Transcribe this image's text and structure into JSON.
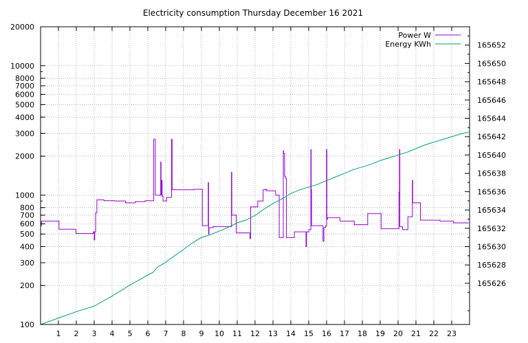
{
  "chart_data": {
    "type": "line",
    "title": "Electricity consumption Thursday December 16 2021",
    "xlabel": "",
    "ylabel": "",
    "y2label": "",
    "x_range": [
      0,
      24
    ],
    "x_ticks": [
      "1",
      "2",
      "3",
      "4",
      "5",
      "6",
      "7",
      "8",
      "9",
      "10",
      "11",
      "12",
      "13",
      "14",
      "15",
      "16",
      "17",
      "18",
      "19",
      "20",
      "21",
      "22",
      "23"
    ],
    "y_scale": "log",
    "y_range": [
      100,
      20000
    ],
    "y_ticks": [
      "100",
      "200",
      "300",
      "400",
      "500",
      "600",
      "700",
      "800",
      "1000",
      "2000",
      "3000",
      "4000",
      "5000",
      "6000",
      "7000",
      "8000",
      "10000",
      "20000"
    ],
    "y2_range": [
      165621.5,
      165654
    ],
    "y2_ticks": [
      "165626",
      "165628",
      "165630",
      "165632",
      "165634",
      "165636",
      "165638",
      "165640",
      "165642",
      "165644",
      "165646",
      "165648",
      "165650",
      "165652"
    ],
    "grid": true,
    "legend_position": "top-right",
    "series": [
      {
        "name": "Power W",
        "axis": "left",
        "color": "#9400d3",
        "step": true,
        "points": [
          [
            0,
            580
          ],
          [
            0.05,
            630
          ],
          [
            1,
            630
          ],
          [
            1.03,
            545
          ],
          [
            1.95,
            545
          ],
          [
            1.98,
            505
          ],
          [
            2.9,
            505
          ],
          [
            2.95,
            520
          ],
          [
            3.0,
            450
          ],
          [
            3.03,
            520
          ],
          [
            3.08,
            730
          ],
          [
            3.15,
            920
          ],
          [
            3.5,
            920
          ],
          [
            3.55,
            905
          ],
          [
            4.1,
            905
          ],
          [
            4.15,
            900
          ],
          [
            4.7,
            900
          ],
          [
            4.75,
            870
          ],
          [
            5.25,
            870
          ],
          [
            5.3,
            890
          ],
          [
            5.8,
            890
          ],
          [
            5.85,
            905
          ],
          [
            6.3,
            905
          ],
          [
            6.33,
            2700
          ],
          [
            6.4,
            2700
          ],
          [
            6.42,
            1000
          ],
          [
            6.7,
            1000
          ],
          [
            6.72,
            1800
          ],
          [
            6.74,
            1000
          ],
          [
            6.78,
            1300
          ],
          [
            6.8,
            980
          ],
          [
            6.85,
            900
          ],
          [
            7.0,
            900
          ],
          [
            7.05,
            960
          ],
          [
            7.3,
            960
          ],
          [
            7.33,
            2700
          ],
          [
            7.36,
            1100
          ],
          [
            8.55,
            1100
          ],
          [
            8.6,
            1110
          ],
          [
            9.0,
            1110
          ],
          [
            9.05,
            580
          ],
          [
            9.35,
            580
          ],
          [
            9.38,
            1250
          ],
          [
            9.4,
            500
          ],
          [
            9.42,
            560
          ],
          [
            9.6,
            560
          ],
          [
            9.65,
            570
          ],
          [
            10.65,
            570
          ],
          [
            10.68,
            1500
          ],
          [
            10.7,
            700
          ],
          [
            10.9,
            700
          ],
          [
            10.95,
            510
          ],
          [
            11.7,
            510
          ],
          [
            11.72,
            460
          ],
          [
            11.75,
            810
          ],
          [
            12.1,
            810
          ],
          [
            12.15,
            900
          ],
          [
            12.4,
            900
          ],
          [
            12.45,
            1100
          ],
          [
            12.6,
            1110
          ],
          [
            12.65,
            1080
          ],
          [
            13.1,
            1080
          ],
          [
            13.15,
            1000
          ],
          [
            13.3,
            1000
          ],
          [
            13.35,
            470
          ],
          [
            13.55,
            470
          ],
          [
            13.58,
            2200
          ],
          [
            13.6,
            2100
          ],
          [
            13.65,
            1400
          ],
          [
            13.7,
            1350
          ],
          [
            13.75,
            470
          ],
          [
            14.15,
            470
          ],
          [
            14.2,
            520
          ],
          [
            14.8,
            520
          ],
          [
            14.85,
            400
          ],
          [
            14.88,
            520
          ],
          [
            15.0,
            540
          ],
          [
            15.1,
            540
          ],
          [
            15.12,
            2250
          ],
          [
            15.14,
            1100
          ],
          [
            15.16,
            580
          ],
          [
            15.75,
            580
          ],
          [
            15.8,
            440
          ],
          [
            15.85,
            560
          ],
          [
            15.95,
            580
          ],
          [
            16.0,
            2250
          ],
          [
            16.02,
            650
          ],
          [
            16.05,
            670
          ],
          [
            16.7,
            670
          ],
          [
            16.75,
            630
          ],
          [
            17.5,
            630
          ],
          [
            17.55,
            590
          ],
          [
            18.25,
            590
          ],
          [
            18.3,
            720
          ],
          [
            19.0,
            720
          ],
          [
            19.05,
            550
          ],
          [
            20.0,
            550
          ],
          [
            20.05,
            1050
          ],
          [
            20.08,
            2250
          ],
          [
            20.1,
            570
          ],
          [
            20.2,
            570
          ],
          [
            20.25,
            540
          ],
          [
            20.5,
            540
          ],
          [
            20.55,
            680
          ],
          [
            20.75,
            680
          ],
          [
            20.8,
            1300
          ],
          [
            20.82,
            870
          ],
          [
            21.2,
            870
          ],
          [
            21.25,
            640
          ],
          [
            22.3,
            640
          ],
          [
            22.35,
            630
          ],
          [
            23.05,
            630
          ],
          [
            23.1,
            610
          ],
          [
            23.95,
            610
          ]
        ]
      },
      {
        "name": "Energy KWh",
        "axis": "right",
        "color": "#009e73",
        "step": false,
        "points": [
          [
            0,
            165621.5
          ],
          [
            1,
            165622.2
          ],
          [
            2,
            165622.9
          ],
          [
            3,
            165623.5
          ],
          [
            4,
            165624.6
          ],
          [
            5,
            165625.8
          ],
          [
            6,
            165626.9
          ],
          [
            6.3,
            165627.2
          ],
          [
            6.5,
            165627.7
          ],
          [
            7,
            165628.3
          ],
          [
            8,
            165629.7
          ],
          [
            8.5,
            165630.4
          ],
          [
            9,
            165631.0
          ],
          [
            9.5,
            165631.3
          ],
          [
            10,
            165631.7
          ],
          [
            10.5,
            165632.1
          ],
          [
            11,
            165632.6
          ],
          [
            11.5,
            165632.9
          ],
          [
            12,
            165633.4
          ],
          [
            12.5,
            165634.1
          ],
          [
            13,
            165634.7
          ],
          [
            13.5,
            165635.2
          ],
          [
            14,
            165635.8
          ],
          [
            14.5,
            165636.2
          ],
          [
            15,
            165636.5
          ],
          [
            15.5,
            165636.8
          ],
          [
            16,
            165637.2
          ],
          [
            16.5,
            165637.6
          ],
          [
            17,
            165638.0
          ],
          [
            17.5,
            165638.4
          ],
          [
            18,
            165638.7
          ],
          [
            18.5,
            165639.0
          ],
          [
            19,
            165639.4
          ],
          [
            19.5,
            165639.7
          ],
          [
            20,
            165640.0
          ],
          [
            20.5,
            165640.3
          ],
          [
            21,
            165640.7
          ],
          [
            21.5,
            165641.1
          ],
          [
            22,
            165641.4
          ],
          [
            22.5,
            165641.7
          ],
          [
            23,
            165642.0
          ],
          [
            23.5,
            165642.3
          ],
          [
            23.95,
            165642.5
          ]
        ]
      }
    ]
  }
}
